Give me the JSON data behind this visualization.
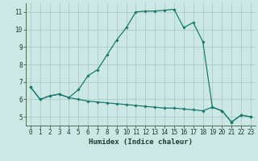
{
  "title": "",
  "xlabel": "Humidex (Indice chaleur)",
  "ylabel": "",
  "bg_color": "#cce8e4",
  "grid_color": "#aaccC8",
  "line_color": "#1a7a6e",
  "upper_x": [
    0,
    1,
    2,
    3,
    4,
    5,
    6,
    7,
    8,
    9,
    10,
    11,
    12,
    13,
    14,
    15,
    16,
    17,
    18,
    19,
    20,
    21,
    22,
    23
  ],
  "upper_y": [
    6.7,
    6.0,
    6.2,
    6.3,
    6.1,
    6.55,
    7.35,
    7.7,
    8.55,
    9.4,
    10.1,
    11.0,
    11.05,
    11.05,
    11.1,
    11.15,
    10.1,
    10.4,
    9.3,
    5.55,
    5.35,
    4.7,
    5.1,
    5.0
  ],
  "lower_x": [
    0,
    1,
    2,
    3,
    4,
    5,
    6,
    7,
    8,
    9,
    10,
    11,
    12,
    13,
    14,
    15,
    16,
    17,
    18,
    19,
    20,
    21,
    22,
    23
  ],
  "lower_y": [
    6.7,
    6.0,
    6.2,
    6.3,
    6.1,
    6.0,
    5.9,
    5.85,
    5.8,
    5.75,
    5.7,
    5.65,
    5.6,
    5.55,
    5.5,
    5.5,
    5.45,
    5.4,
    5.35,
    5.55,
    5.35,
    4.7,
    5.1,
    5.0
  ],
  "xlim": [
    -0.5,
    23.5
  ],
  "ylim": [
    4.5,
    11.5
  ],
  "yticks": [
    5,
    6,
    7,
    8,
    9,
    10,
    11
  ],
  "xticks": [
    0,
    1,
    2,
    3,
    4,
    5,
    6,
    7,
    8,
    9,
    10,
    11,
    12,
    13,
    14,
    15,
    16,
    17,
    18,
    19,
    20,
    21,
    22,
    23
  ],
  "marker": "D",
  "markersize": 1.8,
  "linewidth": 0.9,
  "tick_fontsize": 5.5,
  "xlabel_fontsize": 6.5
}
